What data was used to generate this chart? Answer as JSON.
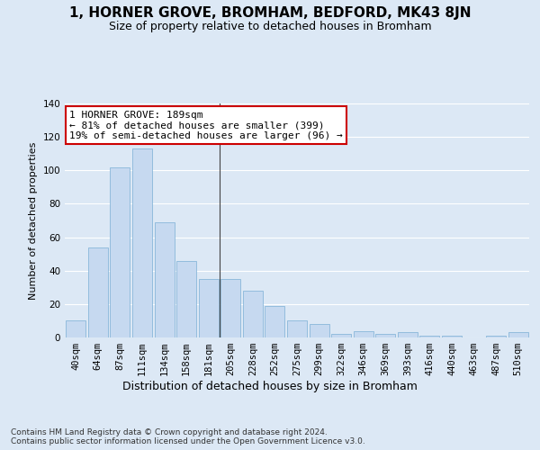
{
  "title": "1, HORNER GROVE, BROMHAM, BEDFORD, MK43 8JN",
  "subtitle": "Size of property relative to detached houses in Bromham",
  "xlabel": "Distribution of detached houses by size in Bromham",
  "ylabel": "Number of detached properties",
  "categories": [
    "40sqm",
    "64sqm",
    "87sqm",
    "111sqm",
    "134sqm",
    "158sqm",
    "181sqm",
    "205sqm",
    "228sqm",
    "252sqm",
    "275sqm",
    "299sqm",
    "322sqm",
    "346sqm",
    "369sqm",
    "393sqm",
    "416sqm",
    "440sqm",
    "463sqm",
    "487sqm",
    "510sqm"
  ],
  "values": [
    10,
    54,
    102,
    113,
    69,
    46,
    35,
    35,
    28,
    19,
    10,
    8,
    2,
    4,
    2,
    3,
    1,
    1,
    0,
    1,
    3
  ],
  "bar_color": "#c6d9f0",
  "bar_edge_color": "#7aafd4",
  "annotation_text": "1 HORNER GROVE: 189sqm\n← 81% of detached houses are smaller (399)\n19% of semi-detached houses are larger (96) →",
  "annotation_box_facecolor": "#ffffff",
  "annotation_box_edgecolor": "#cc0000",
  "ylim": [
    0,
    140
  ],
  "yticks": [
    0,
    20,
    40,
    60,
    80,
    100,
    120,
    140
  ],
  "background_color": "#dce8f5",
  "plot_bg_color": "#dce8f5",
  "grid_color": "#ffffff",
  "title_fontsize": 11,
  "subtitle_fontsize": 9,
  "xlabel_fontsize": 9,
  "ylabel_fontsize": 8,
  "tick_fontsize": 7.5,
  "annotation_fontsize": 8,
  "footer_text": "Contains HM Land Registry data © Crown copyright and database right 2024.\nContains public sector information licensed under the Open Government Licence v3.0.",
  "footer_fontsize": 6.5,
  "vline_x": 6.5
}
